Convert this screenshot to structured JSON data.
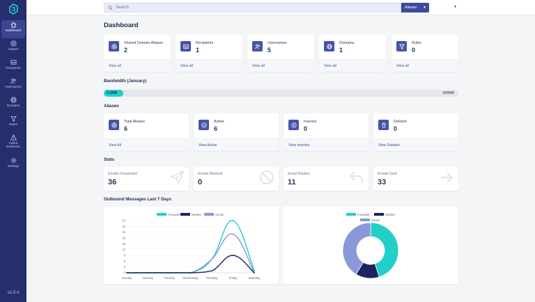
{
  "app": {
    "version": "v1.0.4"
  },
  "sidebar": {
    "items": [
      {
        "label": "Dashboard",
        "icon": "home-icon",
        "active": true
      },
      {
        "label": "Aliases",
        "icon": "at-icon"
      },
      {
        "label": "Recipients",
        "icon": "inbox-icon"
      },
      {
        "label": "Usernames",
        "icon": "users-icon"
      },
      {
        "label": "Domains",
        "icon": "globe-icon"
      },
      {
        "label": "Rules",
        "icon": "filter-icon"
      },
      {
        "label": "Failed",
        "label2": "Deliveries",
        "icon": "warning-icon"
      },
      {
        "label": "Settings",
        "icon": "gear-icon"
      }
    ]
  },
  "topbar": {
    "search_placeholder": "Search",
    "alias_dropdown": "Aliases"
  },
  "page": {
    "title": "Dashboard"
  },
  "summary": [
    {
      "label": "Shared Domain Aliases",
      "value": "2",
      "link": "View all",
      "icon": "at-icon"
    },
    {
      "label": "Recipients",
      "value": "1",
      "link": "View all",
      "icon": "inbox-icon"
    },
    {
      "label": "Usernames",
      "value": "5",
      "link": "View all",
      "icon": "users-icon"
    },
    {
      "label": "Domains",
      "value": "1",
      "link": "View all",
      "icon": "globe-icon"
    },
    {
      "label": "Rules",
      "value": "0",
      "link": "View all",
      "icon": "filter-icon"
    }
  ],
  "bandwidth": {
    "title": "Bandwidth (January)",
    "used": "0.3MB",
    "max": "500MB",
    "fraction": 0.0006
  },
  "aliases": {
    "title": "Aliases",
    "cards": [
      {
        "label": "Total Aliases",
        "value": "6",
        "link": "View All",
        "icon": "at-icon"
      },
      {
        "label": "Active",
        "value": "6",
        "link": "View Active",
        "icon": "check-circle-icon"
      },
      {
        "label": "Inactive",
        "value": "0",
        "link": "View Inactive",
        "icon": "pause-circle-icon"
      },
      {
        "label": "Deleted",
        "value": "0",
        "link": "View Deleted",
        "icon": "trash-icon"
      }
    ]
  },
  "stats": {
    "title": "Stats",
    "cards": [
      {
        "label": "Emails Forwarded",
        "value": "36",
        "icon": "send-icon"
      },
      {
        "label": "Emails Blocked",
        "value": "0",
        "icon": "blocked-icon"
      },
      {
        "label": "Email Replies",
        "value": "11",
        "icon": "reply-icon"
      },
      {
        "label": "Emails Sent",
        "value": "33",
        "icon": "arrow-right-icon"
      }
    ]
  },
  "outbound": {
    "title": "Outbound Messages Last 7 Days"
  },
  "chart_data": [
    {
      "type": "line",
      "categories": [
        "Sunday",
        "Monday",
        "Tuesday",
        "Wednesday",
        "Thursday",
        "Friday",
        "Saturday"
      ],
      "series": [
        {
          "name": "Forwards",
          "color": "#22d0c7",
          "values": [
            0,
            0,
            0,
            0,
            7,
            27,
            1
          ]
        },
        {
          "name": "Replies",
          "color": "#1c2363",
          "values": [
            0,
            0,
            0,
            0,
            1,
            9,
            0
          ]
        },
        {
          "name": "Sends",
          "color": "#8a98d8",
          "values": [
            0,
            0,
            0,
            0,
            7,
            20,
            0
          ]
        }
      ],
      "ylim": [
        0,
        27
      ],
      "yticks": [
        0,
        3,
        6,
        9,
        12,
        15,
        18,
        21,
        24,
        27
      ],
      "legend": "top"
    },
    {
      "type": "pie",
      "series": [
        {
          "name": "Forwards",
          "color": "#22d0c7",
          "value": 36
        },
        {
          "name": "Replies",
          "color": "#1c2363",
          "value": 11
        },
        {
          "name": "Sends",
          "color": "#8a98d8",
          "value": 33
        }
      ],
      "legend": "top"
    }
  ]
}
